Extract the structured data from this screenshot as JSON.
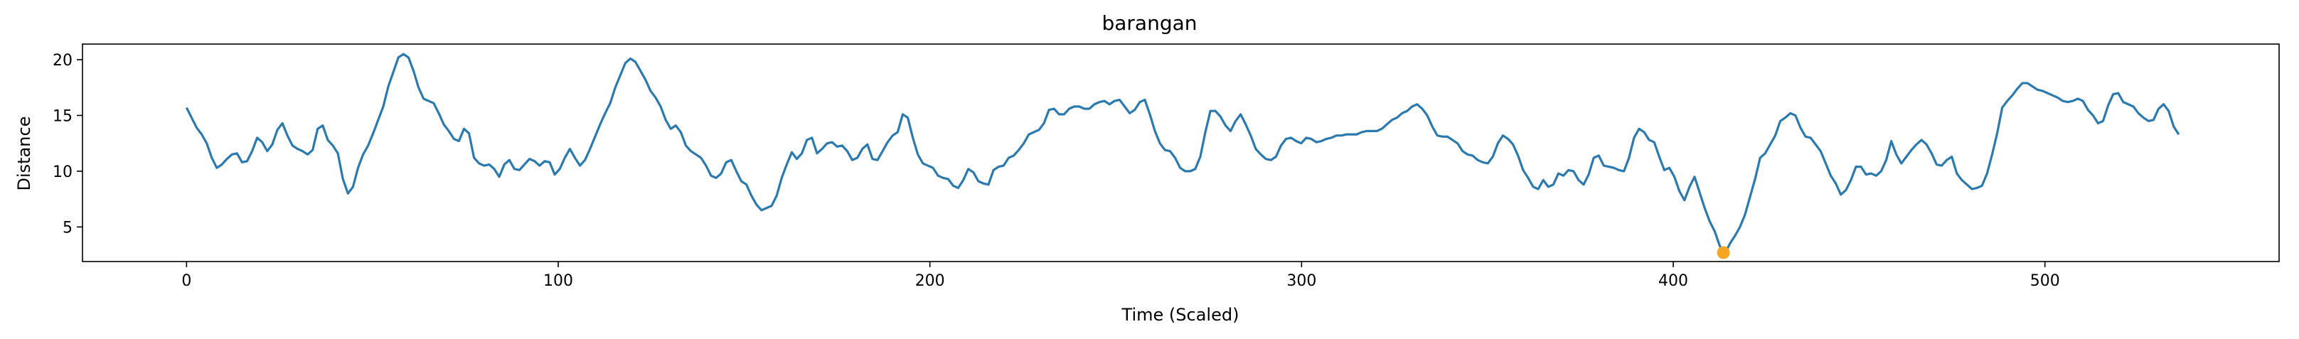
{
  "chart_data": {
    "type": "line",
    "title": "barangan",
    "xlabel": "Time (Scaled)",
    "ylabel": "Distance",
    "xlim": [
      -28,
      563
    ],
    "ylim": [
      1.9,
      21.4
    ],
    "xticks": [
      0,
      100,
      200,
      300,
      400,
      500
    ],
    "yticks": [
      5,
      10,
      15,
      20
    ],
    "grid": false,
    "line_color": "#2a7ab0",
    "marker_color": "#f5a623",
    "series": [
      {
        "values": [
          15.7,
          14.8,
          13.9,
          13.3,
          12.5,
          11.2,
          10.3,
          10.6,
          11.1,
          11.5,
          11.6,
          10.8,
          10.9,
          11.8,
          13.0,
          12.6,
          11.8,
          12.4,
          13.7,
          14.3,
          13.2,
          12.3,
          12.0,
          11.8,
          11.5,
          11.9,
          13.8,
          14.1,
          12.8,
          12.3,
          11.6,
          9.3,
          8.0,
          8.6,
          10.3,
          11.5,
          12.3,
          13.4,
          14.6,
          15.8,
          17.6,
          18.9,
          20.2,
          20.5,
          20.2,
          19.0,
          17.5,
          16.5,
          16.3,
          16.1,
          15.2,
          14.2,
          13.6,
          12.9,
          12.7,
          13.8,
          13.4,
          11.2,
          10.7,
          10.5,
          10.6,
          10.2,
          9.5,
          10.6,
          11.0,
          10.2,
          10.1,
          10.6,
          11.1,
          10.9,
          10.5,
          10.9,
          10.8,
          9.7,
          10.2,
          11.2,
          12.0,
          11.2,
          10.5,
          11.0,
          12.0,
          13.1,
          14.2,
          15.2,
          16.1,
          17.5,
          18.6,
          19.7,
          20.1,
          19.8,
          19.0,
          18.2,
          17.2,
          16.6,
          15.8,
          14.6,
          13.8,
          14.1,
          13.5,
          12.3,
          11.8,
          11.5,
          11.2,
          10.5,
          9.6,
          9.4,
          9.8,
          10.8,
          11.0,
          10.0,
          9.1,
          8.8,
          7.8,
          7.0,
          6.5,
          6.7,
          6.9,
          7.8,
          9.4,
          10.6,
          11.7,
          11.1,
          11.6,
          12.8,
          13.0,
          11.6,
          12.0,
          12.5,
          12.6,
          12.2,
          12.3,
          11.8,
          11.0,
          11.2,
          12.0,
          12.4,
          11.1,
          11.0,
          11.8,
          12.6,
          13.2,
          13.5,
          15.1,
          14.8,
          13.0,
          11.5,
          10.7,
          10.5,
          10.3,
          9.6,
          9.4,
          9.3,
          8.7,
          8.5,
          9.2,
          10.2,
          9.9,
          9.1,
          8.9,
          8.8,
          10.1,
          10.4,
          10.5,
          11.2,
          11.4,
          11.9,
          12.5,
          13.3,
          13.5,
          13.7,
          14.3,
          15.5,
          15.6,
          15.1,
          15.1,
          15.6,
          15.8,
          15.8,
          15.6,
          15.6,
          16.0,
          16.2,
          16.3,
          16.0,
          16.3,
          16.4,
          15.8,
          15.2,
          15.5,
          16.2,
          16.4,
          15.1,
          13.6,
          12.5,
          11.9,
          11.8,
          11.2,
          10.3,
          10.0,
          10.0,
          10.2,
          11.3,
          13.5,
          15.4,
          15.4,
          14.9,
          14.1,
          13.6,
          14.5,
          15.1,
          14.2,
          13.2,
          12.0,
          11.5,
          11.1,
          11.0,
          11.3,
          12.3,
          12.9,
          13.0,
          12.7,
          12.5,
          13.0,
          12.9,
          12.6,
          12.7,
          12.9,
          13.0,
          13.2,
          13.2,
          13.3,
          13.3,
          13.3,
          13.5,
          13.6,
          13.6,
          13.6,
          13.8,
          14.2,
          14.6,
          14.8,
          15.2,
          15.4,
          15.8,
          16.0,
          15.6,
          15.0,
          14.0,
          13.2,
          13.1,
          13.1,
          12.8,
          12.5,
          11.8,
          11.5,
          11.4,
          11.0,
          10.8,
          10.7,
          11.3,
          12.5,
          13.2,
          12.9,
          12.4,
          11.4,
          10.1,
          9.4,
          8.6,
          8.4,
          9.2,
          8.6,
          8.8,
          9.8,
          9.6,
          10.1,
          10.0,
          9.2,
          8.8,
          9.7,
          11.2,
          11.4,
          10.5,
          10.4,
          10.3,
          10.1,
          10.0,
          11.2,
          13.0,
          13.8,
          13.5,
          12.8,
          12.6,
          11.3,
          10.1,
          10.3,
          9.5,
          8.2,
          7.4,
          8.6,
          9.5,
          8.1,
          6.7,
          5.5,
          4.6,
          3.3,
          2.6,
          3.5,
          4.2,
          5.0,
          6.1,
          7.7,
          9.3,
          11.2,
          11.6,
          12.4,
          13.2,
          14.5,
          14.8,
          15.2,
          15.0,
          13.9,
          13.1,
          13.0,
          12.4,
          11.8,
          10.7,
          9.6,
          8.9,
          7.9,
          8.3,
          9.2,
          10.4,
          10.4,
          9.7,
          9.8,
          9.6,
          10.0,
          11.0,
          12.7,
          11.5,
          10.7,
          11.3,
          11.9,
          12.4,
          12.8,
          12.4,
          11.6,
          10.6,
          10.5,
          11.0,
          11.3,
          9.8,
          9.2,
          8.8,
          8.4,
          8.5,
          8.7,
          9.8,
          11.5,
          13.4,
          15.7,
          16.3,
          16.8,
          17.4,
          17.9,
          17.9,
          17.6,
          17.3,
          17.2,
          17.0,
          16.8,
          16.6,
          16.3,
          16.2,
          16.3,
          16.5,
          16.3,
          15.5,
          15.0,
          14.3,
          14.5,
          15.9,
          16.9,
          17.0,
          16.2,
          16.0,
          15.8,
          15.2,
          14.8,
          14.5,
          14.6,
          15.6,
          16.0,
          15.4,
          14.0,
          13.3
        ]
      }
    ],
    "highlight_point": {
      "x": 413.5,
      "y": 2.7
    }
  }
}
